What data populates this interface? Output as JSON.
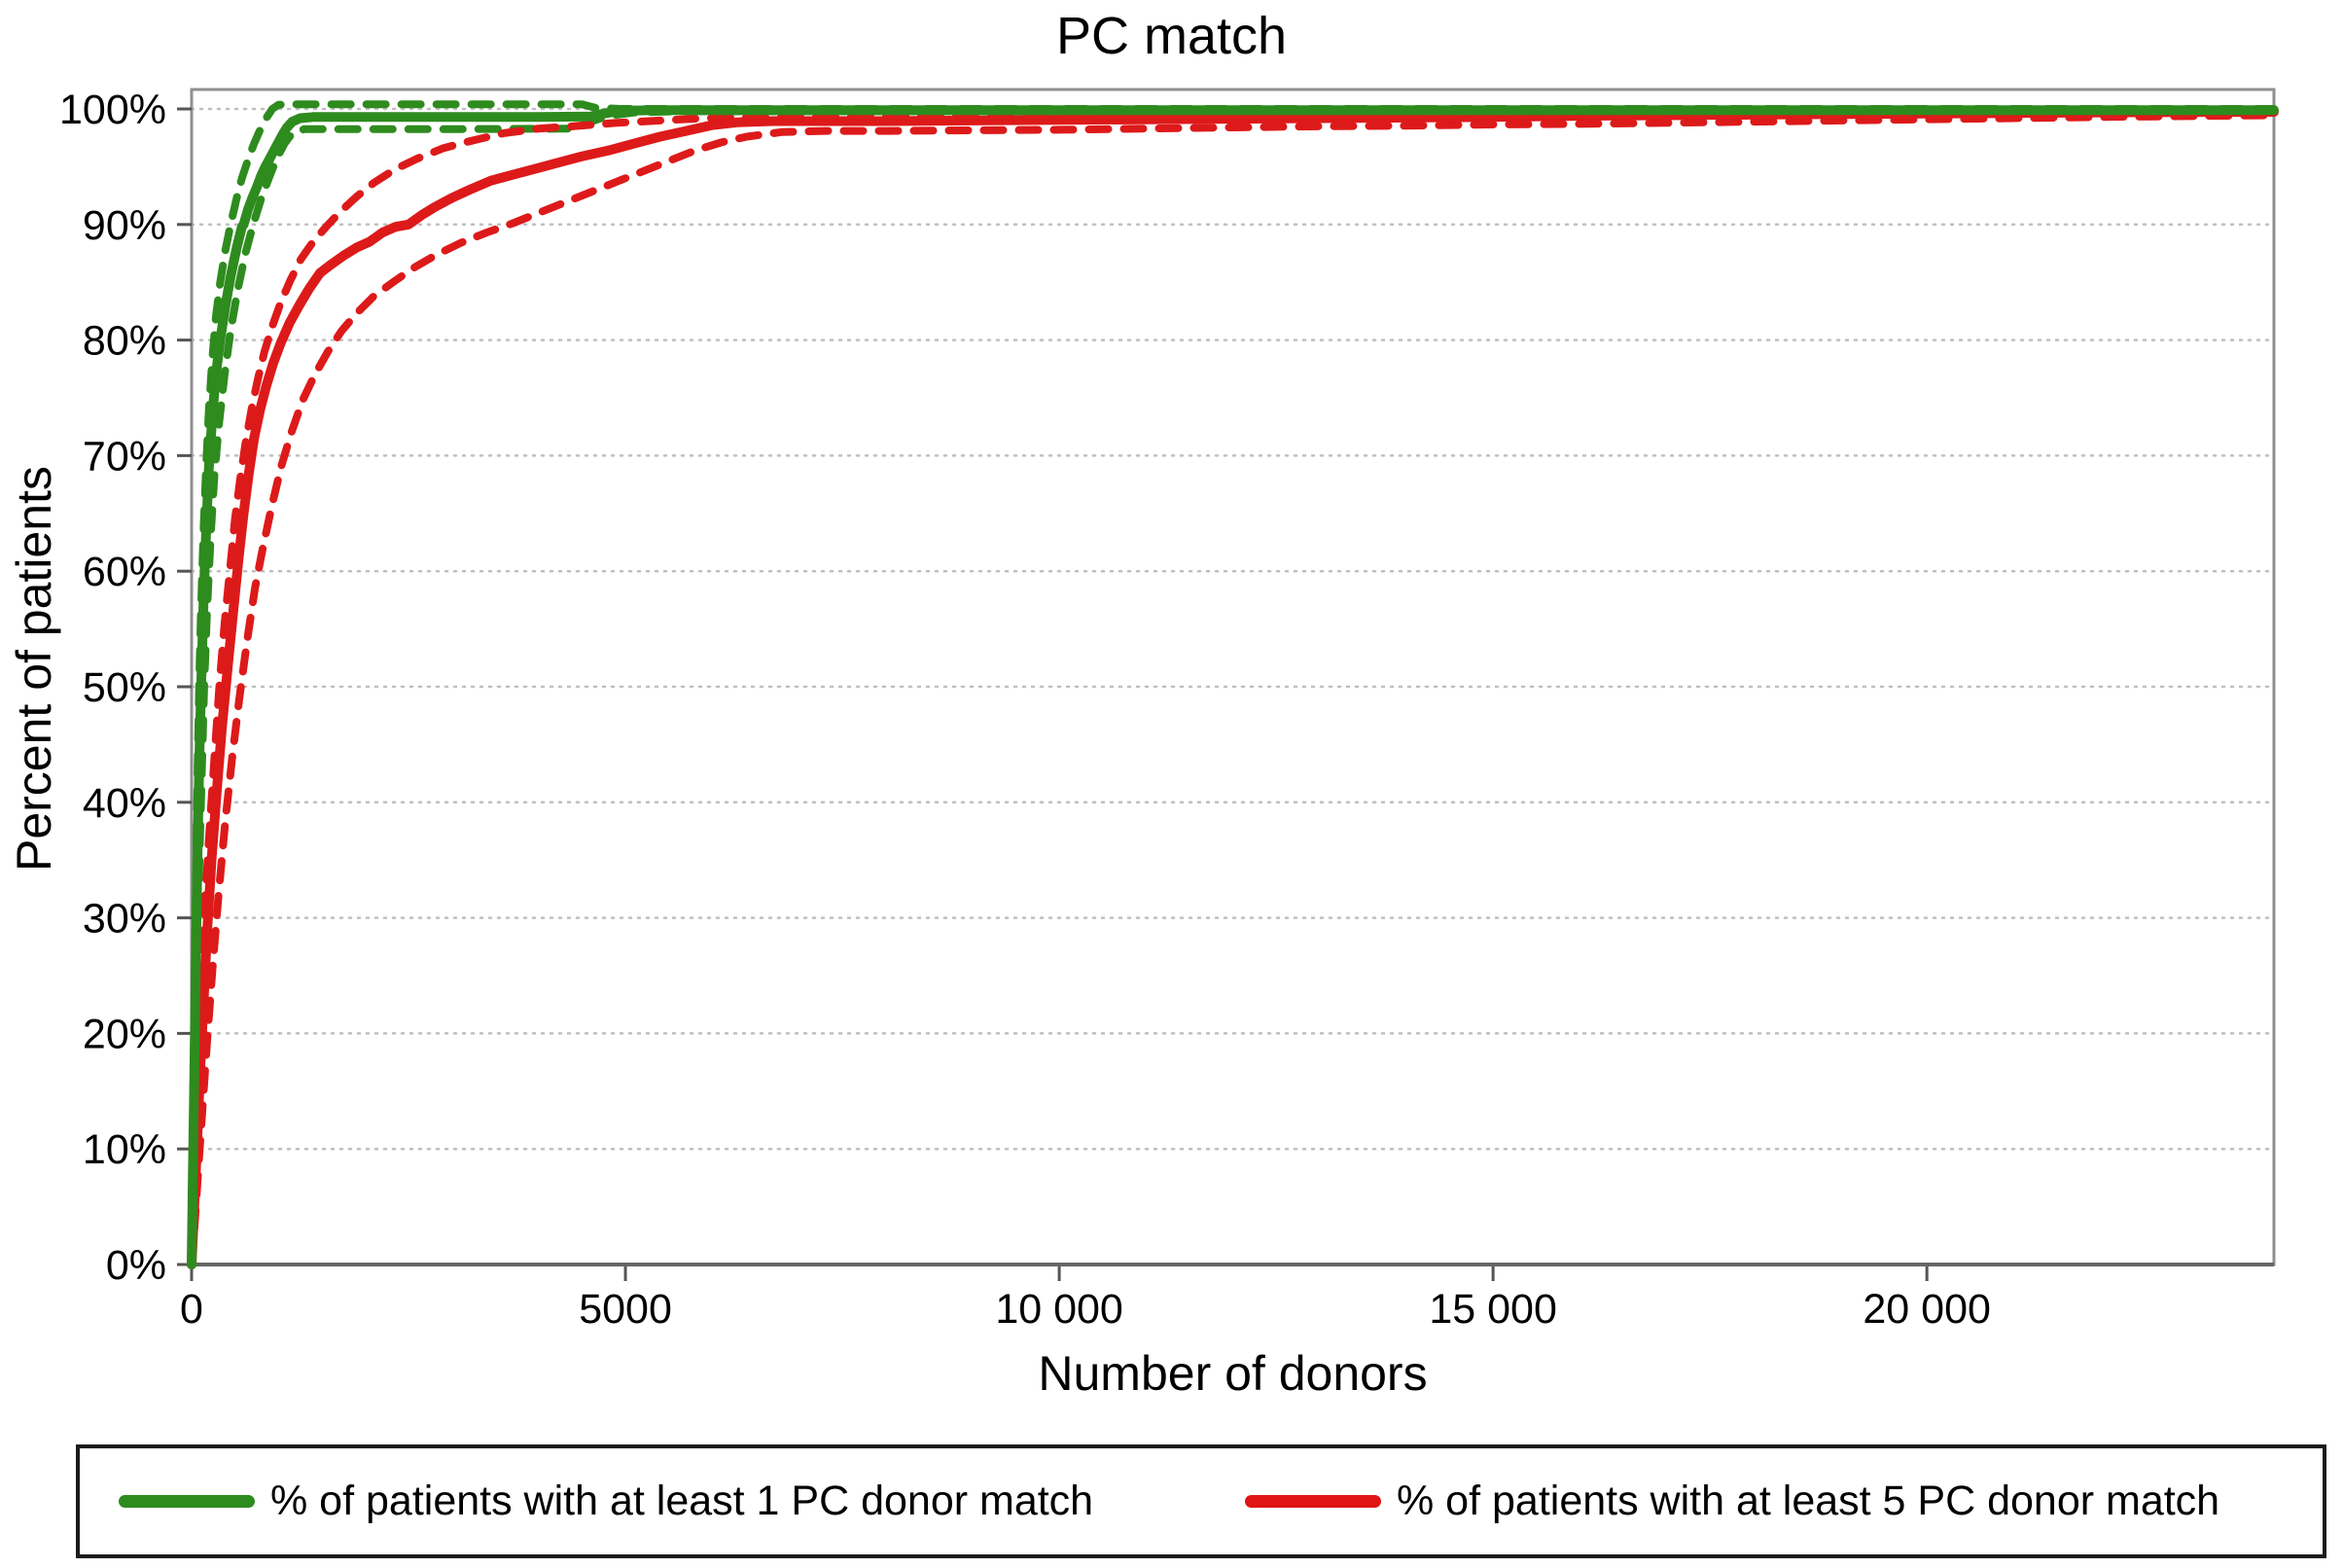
{
  "title": "PC match",
  "axes": {
    "x_label": "Number of donors",
    "y_label": "Percent of patients"
  },
  "legend": [
    {
      "label": "% of patients with at least 1 PC donor match",
      "color": "#2e8b1e",
      "style": "solid"
    },
    {
      "label": "% of patients with at least 5 PC donor match",
      "color": "#e01414",
      "style": "solid"
    }
  ],
  "colors": {
    "green": "#2e8b1e",
    "red": "#dd1a1a",
    "gridline": "#bfbfbf",
    "plot_border": "#8f8f8f",
    "axis_line": "#666666",
    "tick": "#555555",
    "legend_border": "#1c1c1c"
  },
  "chart_data": {
    "type": "line",
    "title": "PC match",
    "xlabel": "Number of donors",
    "ylabel": "Percent of patients",
    "xlim": [
      0,
      24000
    ],
    "ylim": [
      0,
      100
    ],
    "grid": "horizontal dotted lines at every 10%",
    "legend_position": "bottom",
    "x_ticks": [
      {
        "value": 0,
        "label": "0"
      },
      {
        "value": 5000,
        "label": "5000"
      },
      {
        "value": 10000,
        "label": "10 000"
      },
      {
        "value": 15000,
        "label": "15 000"
      },
      {
        "value": 20000,
        "label": "20 000"
      }
    ],
    "y_ticks": [
      {
        "value": 0,
        "label": "0%"
      },
      {
        "value": 10,
        "label": "10%"
      },
      {
        "value": 20,
        "label": "20%"
      },
      {
        "value": 30,
        "label": "30%"
      },
      {
        "value": 40,
        "label": "40%"
      },
      {
        "value": 50,
        "label": "50%"
      },
      {
        "value": 60,
        "label": "60%"
      },
      {
        "value": 70,
        "label": "70%"
      },
      {
        "value": 80,
        "label": "80%"
      },
      {
        "value": 90,
        "label": "90%"
      },
      {
        "value": 100,
        "label": "100%"
      }
    ],
    "series": [
      {
        "name": "at least 1 PC donor match - lower band (dashed)",
        "color": "#2e8b1e",
        "style": "dashed",
        "width": 8,
        "points": [
          [
            0,
            0
          ],
          [
            20,
            8
          ],
          [
            40,
            16
          ],
          [
            65,
            26
          ],
          [
            90,
            35
          ],
          [
            115,
            42
          ],
          [
            145,
            50
          ],
          [
            180,
            57
          ],
          [
            220,
            63
          ],
          [
            265,
            68.5
          ],
          [
            320,
            73
          ],
          [
            380,
            77
          ],
          [
            450,
            80.8
          ],
          [
            530,
            84.3
          ],
          [
            620,
            87.5
          ],
          [
            710,
            90
          ],
          [
            800,
            92.2
          ],
          [
            890,
            94
          ],
          [
            980,
            95.7
          ],
          [
            1070,
            97
          ],
          [
            1170,
            98
          ],
          [
            1300,
            98.25
          ],
          [
            2000,
            98.25
          ],
          [
            3000,
            98.25
          ],
          [
            4400,
            98.3
          ],
          [
            4600,
            98.9
          ],
          [
            4800,
            99.4
          ],
          [
            5100,
            99.7
          ],
          [
            5600,
            99.8
          ],
          [
            8000,
            99.8
          ],
          [
            12000,
            99.8
          ],
          [
            16000,
            99.85
          ],
          [
            20000,
            99.85
          ],
          [
            24000,
            99.85
          ]
        ]
      },
      {
        "name": "at least 1 PC donor match - upper band (dashed)",
        "color": "#2e8b1e",
        "style": "dashed",
        "width": 8,
        "points": [
          [
            0,
            0
          ],
          [
            15,
            11
          ],
          [
            30,
            21
          ],
          [
            50,
            33
          ],
          [
            70,
            43
          ],
          [
            90,
            51
          ],
          [
            110,
            57
          ],
          [
            140,
            64
          ],
          [
            170,
            69.5
          ],
          [
            200,
            74
          ],
          [
            240,
            78.5
          ],
          [
            280,
            82
          ],
          [
            330,
            85
          ],
          [
            390,
            87.8
          ],
          [
            450,
            90
          ],
          [
            520,
            92.3
          ],
          [
            580,
            94
          ],
          [
            650,
            95.6
          ],
          [
            720,
            97
          ],
          [
            790,
            98.2
          ],
          [
            860,
            99.2
          ],
          [
            930,
            100
          ],
          [
            1000,
            100.35
          ],
          [
            1100,
            100.4
          ],
          [
            2000,
            100.4
          ],
          [
            3000,
            100.4
          ],
          [
            4500,
            100.4
          ],
          [
            4650,
            100.1
          ],
          [
            4950,
            100
          ],
          [
            8000,
            100
          ],
          [
            16000,
            100
          ],
          [
            24000,
            100
          ]
        ]
      },
      {
        "name": "at least 5 PC donor match - lower band (dashed)",
        "color": "#dd1a1a",
        "style": "dashed",
        "width": 8,
        "points": [
          [
            0,
            0
          ],
          [
            40,
            4
          ],
          [
            80,
            8.5
          ],
          [
            130,
            14
          ],
          [
            180,
            19.5
          ],
          [
            240,
            25.5
          ],
          [
            310,
            32
          ],
          [
            390,
            38.5
          ],
          [
            470,
            44
          ],
          [
            550,
            49
          ],
          [
            640,
            54
          ],
          [
            730,
            58.5
          ],
          [
            820,
            62
          ],
          [
            920,
            65.5
          ],
          [
            1030,
            69
          ],
          [
            1150,
            72
          ],
          [
            1280,
            74.8
          ],
          [
            1420,
            77
          ],
          [
            1570,
            79
          ],
          [
            1730,
            80.8
          ],
          [
            1900,
            82.3
          ],
          [
            2100,
            83.8
          ],
          [
            2320,
            85
          ],
          [
            2550,
            86.2
          ],
          [
            2800,
            87.3
          ],
          [
            3100,
            88.4
          ],
          [
            3400,
            89.3
          ],
          [
            3700,
            90.1
          ],
          [
            4000,
            91
          ],
          [
            4300,
            91.9
          ],
          [
            4600,
            92.8
          ],
          [
            4900,
            93.7
          ],
          [
            5200,
            94.6
          ],
          [
            5500,
            95.5
          ],
          [
            5800,
            96.4
          ],
          [
            6100,
            97.1
          ],
          [
            6400,
            97.6
          ],
          [
            6800,
            98
          ],
          [
            7300,
            98.1
          ],
          [
            8000,
            98.1
          ],
          [
            9000,
            98.15
          ],
          [
            10000,
            98.2
          ],
          [
            11000,
            98.3
          ],
          [
            12000,
            98.4
          ],
          [
            13000,
            98.5
          ],
          [
            14000,
            98.55
          ],
          [
            15000,
            98.65
          ],
          [
            16000,
            98.7
          ],
          [
            17000,
            98.8
          ],
          [
            18000,
            98.9
          ],
          [
            19000,
            99
          ],
          [
            20000,
            99.1
          ],
          [
            21000,
            99.2
          ],
          [
            22000,
            99.3
          ],
          [
            23000,
            99.38
          ],
          [
            24000,
            99.45
          ]
        ]
      },
      {
        "name": "at least 5 PC donor match - upper band (dashed)",
        "color": "#dd1a1a",
        "style": "dashed",
        "width": 8,
        "points": [
          [
            0,
            0
          ],
          [
            25,
            6
          ],
          [
            50,
            12
          ],
          [
            85,
            19
          ],
          [
            120,
            26
          ],
          [
            160,
            32
          ],
          [
            210,
            38
          ],
          [
            265,
            44
          ],
          [
            320,
            50
          ],
          [
            380,
            55.5
          ],
          [
            440,
            60
          ],
          [
            500,
            64.5
          ],
          [
            560,
            68
          ],
          [
            620,
            71
          ],
          [
            690,
            74
          ],
          [
            760,
            76.5
          ],
          [
            840,
            79
          ],
          [
            930,
            81.2
          ],
          [
            1030,
            83.3
          ],
          [
            1140,
            85.2
          ],
          [
            1260,
            87
          ],
          [
            1400,
            88.5
          ],
          [
            1550,
            89.8
          ],
          [
            1700,
            91
          ],
          [
            1900,
            92.4
          ],
          [
            2100,
            93.6
          ],
          [
            2350,
            94.8
          ],
          [
            2600,
            95.7
          ],
          [
            2900,
            96.6
          ],
          [
            3200,
            97.2
          ],
          [
            3600,
            97.9
          ],
          [
            4000,
            98.3
          ],
          [
            4400,
            98.5
          ],
          [
            4900,
            98.8
          ],
          [
            5400,
            99
          ],
          [
            5900,
            99.2
          ],
          [
            6500,
            99.3
          ],
          [
            7500,
            99.35
          ],
          [
            9000,
            99.4
          ],
          [
            11000,
            99.45
          ],
          [
            13000,
            99.5
          ],
          [
            15000,
            99.6
          ],
          [
            17000,
            99.7
          ],
          [
            19000,
            99.75
          ],
          [
            21000,
            99.8
          ],
          [
            24000,
            99.85
          ]
        ]
      },
      {
        "name": "% of patients with at least 5 PC donor match",
        "color": "#dd1a1a",
        "style": "solid",
        "width": 10,
        "points": [
          [
            0,
            0
          ],
          [
            30,
            5
          ],
          [
            60,
            10
          ],
          [
            100,
            17
          ],
          [
            140,
            23
          ],
          [
            180,
            29
          ],
          [
            230,
            35
          ],
          [
            290,
            41
          ],
          [
            350,
            46.5
          ],
          [
            420,
            52
          ],
          [
            480,
            56.5
          ],
          [
            540,
            61
          ],
          [
            600,
            65
          ],
          [
            660,
            68.5
          ],
          [
            720,
            71.5
          ],
          [
            790,
            74
          ],
          [
            860,
            76
          ],
          [
            940,
            78
          ],
          [
            1030,
            79.8
          ],
          [
            1130,
            81.5
          ],
          [
            1240,
            83
          ],
          [
            1360,
            84.5
          ],
          [
            1480,
            85.8
          ],
          [
            1600,
            86.5
          ],
          [
            1750,
            87.3
          ],
          [
            1900,
            88
          ],
          [
            2050,
            88.5
          ],
          [
            2200,
            89.3
          ],
          [
            2350,
            89.8
          ],
          [
            2500,
            90
          ],
          [
            2650,
            90.8
          ],
          [
            2800,
            91.5
          ],
          [
            3000,
            92.3
          ],
          [
            3200,
            93
          ],
          [
            3450,
            93.8
          ],
          [
            3700,
            94.3
          ],
          [
            3950,
            94.8
          ],
          [
            4200,
            95.3
          ],
          [
            4500,
            95.9
          ],
          [
            4800,
            96.4
          ],
          [
            5100,
            97
          ],
          [
            5400,
            97.6
          ],
          [
            5700,
            98.1
          ],
          [
            6000,
            98.6
          ],
          [
            6300,
            98.85
          ],
          [
            6700,
            98.95
          ],
          [
            7200,
            98.95
          ],
          [
            8000,
            98.95
          ],
          [
            9000,
            99
          ],
          [
            10000,
            99.05
          ],
          [
            11000,
            99.1
          ],
          [
            12000,
            99.15
          ],
          [
            13000,
            99.2
          ],
          [
            14000,
            99.25
          ],
          [
            15000,
            99.3
          ],
          [
            16000,
            99.4
          ],
          [
            17000,
            99.45
          ],
          [
            18000,
            99.5
          ],
          [
            19000,
            99.55
          ],
          [
            20000,
            99.6
          ],
          [
            21000,
            99.65
          ],
          [
            22000,
            99.7
          ],
          [
            23000,
            99.72
          ],
          [
            24000,
            99.75
          ]
        ]
      },
      {
        "name": "% of patients with at least 1 PC donor match",
        "color": "#2e8b1e",
        "style": "solid",
        "width": 10,
        "points": [
          [
            0,
            0
          ],
          [
            15,
            8
          ],
          [
            30,
            16
          ],
          [
            50,
            27
          ],
          [
            70,
            36
          ],
          [
            90,
            44
          ],
          [
            110,
            50
          ],
          [
            140,
            58
          ],
          [
            170,
            64
          ],
          [
            200,
            69
          ],
          [
            240,
            73.5
          ],
          [
            280,
            77
          ],
          [
            330,
            80
          ],
          [
            390,
            83
          ],
          [
            450,
            85.5
          ],
          [
            520,
            88
          ],
          [
            580,
            89.8
          ],
          [
            600,
            90
          ],
          [
            650,
            91.3
          ],
          [
            700,
            92.3
          ],
          [
            750,
            93.2
          ],
          [
            800,
            94.2
          ],
          [
            850,
            95
          ],
          [
            900,
            95.7
          ],
          [
            950,
            96.4
          ],
          [
            1000,
            97.1
          ],
          [
            1050,
            97.8
          ],
          [
            1100,
            98.4
          ],
          [
            1160,
            98.9
          ],
          [
            1250,
            99.2
          ],
          [
            1400,
            99.3
          ],
          [
            2000,
            99.3
          ],
          [
            3000,
            99.3
          ],
          [
            4000,
            99.3
          ],
          [
            4600,
            99.35
          ],
          [
            4750,
            99.6
          ],
          [
            4950,
            99.85
          ],
          [
            5400,
            99.9
          ],
          [
            8000,
            99.9
          ],
          [
            12000,
            99.9
          ],
          [
            16000,
            99.9
          ],
          [
            20000,
            99.9
          ],
          [
            24000,
            99.9
          ]
        ]
      }
    ]
  }
}
